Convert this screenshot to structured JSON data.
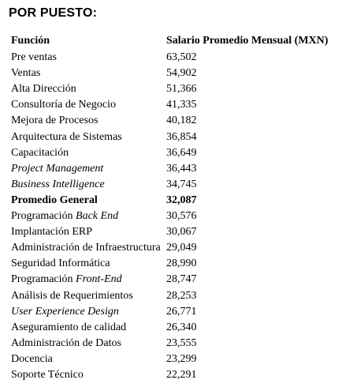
{
  "section_title": "POR PUESTO:",
  "table": {
    "headers": {
      "function": "Función",
      "salary": "Salario Promedio Mensual (MXN)"
    },
    "rows": [
      {
        "function": "Pre ventas",
        "salary": "63,502"
      },
      {
        "function": "Ventas",
        "salary": "54,902"
      },
      {
        "function": "Alta Dirección",
        "salary": "51,366"
      },
      {
        "function": "Consultoría de Negocio",
        "salary": "41,335"
      },
      {
        "function": "Mejora de Procesos",
        "salary": "40,182"
      },
      {
        "function": "Arquitectura de Sistemas",
        "salary": "36,854"
      },
      {
        "function": "Capacitación",
        "salary": "36,649"
      },
      {
        "function": "Project Management",
        "salary": "36,443"
      },
      {
        "function": "Business Intelligence",
        "salary": "34,745"
      },
      {
        "function": "Promedio General",
        "salary": "32,087"
      },
      {
        "function_plain": "Programación ",
        "function_italic": "Back End",
        "salary": "30,576"
      },
      {
        "function": "Implantación ERP",
        "salary": "30,067"
      },
      {
        "function": "Administración de Infraestructura",
        "salary": "29,049"
      },
      {
        "function": "Seguridad Informática",
        "salary": "28,990"
      },
      {
        "function_plain": "Programación ",
        "function_italic": "Front-End",
        "salary": "28,747"
      },
      {
        "function": "Análisis de Requerimientos",
        "salary": "28,253"
      },
      {
        "function": "User Experience Design",
        "salary": "26,771"
      },
      {
        "function": "Aseguramiento de calidad",
        "salary": "26,340"
      },
      {
        "function": "Administración de Datos",
        "salary": "23,555"
      },
      {
        "function": "Docencia",
        "salary": "23,299"
      },
      {
        "function": "Soporte Técnico",
        "salary": "22,291"
      }
    ]
  }
}
